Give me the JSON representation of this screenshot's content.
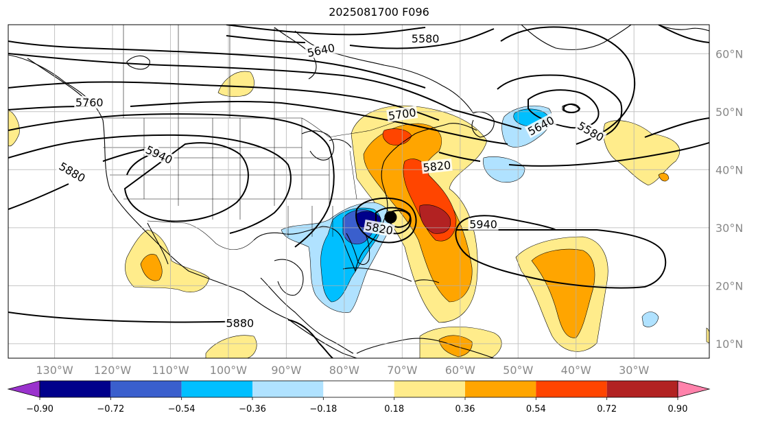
{
  "title": "2025081700 F096",
  "map": {
    "lon_range": [
      -138,
      -17
    ],
    "lat_range": [
      7.5,
      65
    ],
    "lon_ticks": [
      {
        "value": -130,
        "label": "130°W"
      },
      {
        "value": -120,
        "label": "120°W"
      },
      {
        "value": -110,
        "label": "110°W"
      },
      {
        "value": -100,
        "label": "100°W"
      },
      {
        "value": -90,
        "label": "90°W"
      },
      {
        "value": -80,
        "label": "80°W"
      },
      {
        "value": -70,
        "label": "70°W"
      },
      {
        "value": -60,
        "label": "60°W"
      },
      {
        "value": -50,
        "label": "50°W"
      },
      {
        "value": -40,
        "label": "40°W"
      },
      {
        "value": -30,
        "label": "30°W"
      }
    ],
    "lat_ticks": [
      {
        "value": 10,
        "label": "10°N"
      },
      {
        "value": 20,
        "label": "20°N"
      },
      {
        "value": 30,
        "label": "30°N"
      },
      {
        "value": 40,
        "label": "40°N"
      },
      {
        "value": 50,
        "label": "50°N"
      },
      {
        "value": 60,
        "label": "60°N"
      }
    ],
    "contour_labels": [
      {
        "text": "5580",
        "lon": -66,
        "lat": 62.5,
        "rotate": 0
      },
      {
        "text": "5640",
        "lon": -84,
        "lat": 60.5,
        "rotate": 12
      },
      {
        "text": "5760",
        "lon": -124,
        "lat": 51.5,
        "rotate": 0
      },
      {
        "text": "5700",
        "lon": -70,
        "lat": 49.5,
        "rotate": 8
      },
      {
        "text": "5640",
        "lon": -46,
        "lat": 47.5,
        "rotate": 28
      },
      {
        "text": "5580",
        "lon": -37.5,
        "lat": 46.5,
        "rotate": -30
      },
      {
        "text": "5940",
        "lon": -112,
        "lat": 42.5,
        "rotate": -25
      },
      {
        "text": "5820",
        "lon": -64,
        "lat": 40.5,
        "rotate": 6
      },
      {
        "text": "5880",
        "lon": -127,
        "lat": 39.5,
        "rotate": -30
      },
      {
        "text": "5820",
        "lon": -74,
        "lat": 29.8,
        "rotate": -10
      },
      {
        "text": "5940",
        "lon": -56,
        "lat": 30.5,
        "rotate": 0
      },
      {
        "text": "5880",
        "lon": -98,
        "lat": 13.5,
        "rotate": 0
      }
    ],
    "storm_center": {
      "lon": -72,
      "lat": 31.8
    }
  },
  "colorbar": {
    "labels": [
      "−0.90",
      "−0.72",
      "−0.54",
      "−0.36",
      "−0.18",
      "0.18",
      "0.36",
      "0.54",
      "0.72",
      "0.90"
    ],
    "colors": [
      "#9a32cd",
      "#00008b",
      "#3a5fcd",
      "#00bfff",
      "#b0e2ff",
      "#ffffff",
      "#ffec8b",
      "#ffa500",
      "#ff4500",
      "#b22222",
      "#ff82ab"
    ]
  }
}
